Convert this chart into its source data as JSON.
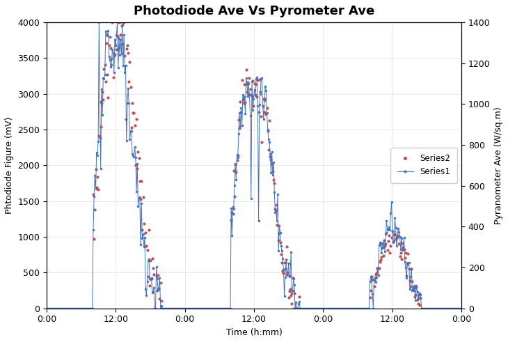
{
  "title": "Photodiode Ave Vs Pyrometer Ave",
  "xlabel": "Time (h:mm)",
  "ylabel_left": "Phtodiode Figure (mV)",
  "ylabel_right": "Pyranometer Ave (W/sq.m)",
  "ylim_left": [
    0,
    4000
  ],
  "ylim_right": [
    0,
    1400
  ],
  "yticks_left": [
    0,
    500,
    1000,
    1500,
    2000,
    2500,
    3000,
    3500,
    4000
  ],
  "yticks_right": [
    0,
    200,
    400,
    600,
    800,
    1000,
    1200,
    1400
  ],
  "xtick_labels": [
    "0:00",
    "12:00",
    "0:00",
    "12:00",
    "0:00",
    "12:00",
    "0:00"
  ],
  "series1_color": "#4472C4",
  "series2_color": "#C0504D",
  "legend_series2": "Series2",
  "legend_series1": "Series1",
  "title_fontsize": 13,
  "axis_label_fontsize": 9,
  "tick_fontsize": 9,
  "n_points": 500,
  "total_hours": 72
}
